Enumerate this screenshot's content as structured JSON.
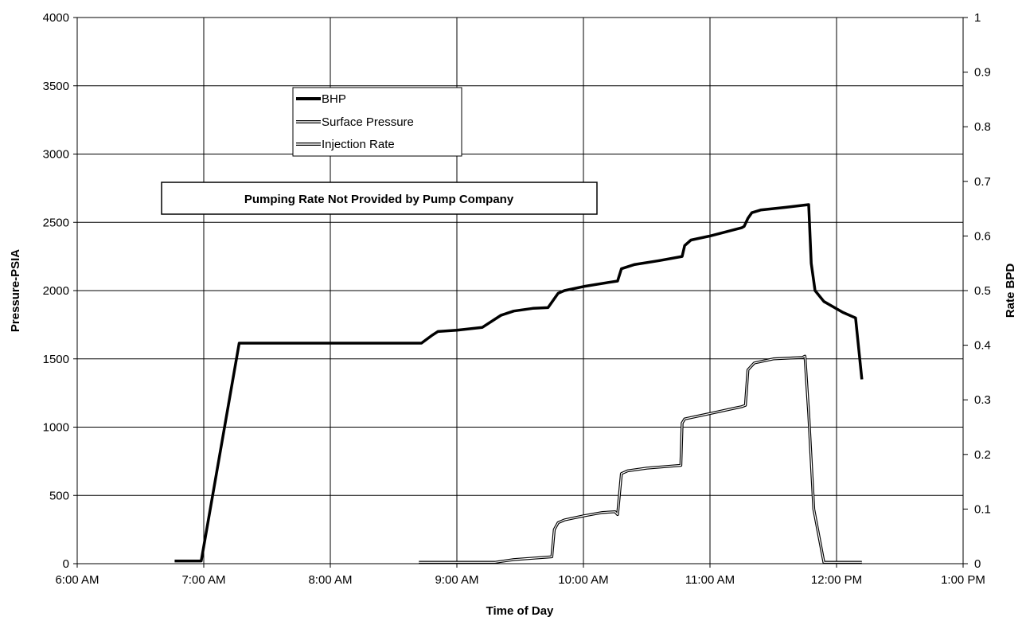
{
  "chart_data": {
    "type": "line",
    "xlabel": "Time of Day",
    "ylabel": "Pressure-PSIA",
    "y2label": "Rate BPD",
    "x_ticks": [
      "6:00 AM",
      "7:00 AM",
      "8:00 AM",
      "9:00 AM",
      "10:00 AM",
      "11:00 AM",
      "12:00 PM",
      "1:00 PM"
    ],
    "xlim_hours": [
      6,
      13
    ],
    "y_ticks": [
      0,
      500,
      1000,
      1500,
      2000,
      2500,
      3000,
      3500,
      4000
    ],
    "ylim": [
      0,
      4000
    ],
    "y2_ticks": [
      "0",
      "0.1",
      "0.2",
      "0.3",
      "0.4",
      "0.5",
      "0.6",
      "0.7",
      "0.8",
      "0.9",
      "1"
    ],
    "y2lim": [
      0,
      1
    ],
    "grid": true,
    "legend": {
      "position": "upper-left",
      "items": [
        "BHP",
        "Surface Pressure",
        "Injection Rate"
      ]
    },
    "annotation": "Pumping Rate Not Provided by Pump Company",
    "series": [
      {
        "name": "BHP",
        "x": [
          6.77,
          6.98,
          7.28,
          8.0,
          8.6,
          8.72,
          8.8,
          8.85,
          9.0,
          9.2,
          9.35,
          9.45,
          9.6,
          9.72,
          9.8,
          9.85,
          10.0,
          10.2,
          10.27,
          10.3,
          10.4,
          10.6,
          10.78,
          10.8,
          10.85,
          11.0,
          11.25,
          11.27,
          11.3,
          11.33,
          11.4,
          11.6,
          11.78,
          11.8,
          11.83,
          11.9,
          12.05,
          12.15,
          12.2
        ],
        "y": [
          20,
          20,
          1615,
          1615,
          1615,
          1615,
          1670,
          1700,
          1710,
          1730,
          1820,
          1850,
          1870,
          1875,
          1980,
          2000,
          2030,
          2060,
          2070,
          2160,
          2190,
          2220,
          2250,
          2330,
          2370,
          2400,
          2460,
          2470,
          2530,
          2570,
          2590,
          2610,
          2630,
          2200,
          2000,
          1920,
          1840,
          1800,
          1350
        ]
      },
      {
        "name": "Surface Pressure",
        "x": [
          8.7,
          9.0,
          9.3,
          9.45,
          9.75,
          9.77,
          9.8,
          9.85,
          10.0,
          10.15,
          10.25,
          10.27,
          10.3,
          10.35,
          10.5,
          10.77,
          10.78,
          10.8,
          10.85,
          11.0,
          11.2,
          11.25,
          11.28,
          11.3,
          11.35,
          11.5,
          11.73,
          11.75,
          11.78,
          11.82,
          11.9,
          12.2
        ],
        "y": [
          10,
          10,
          10,
          30,
          50,
          250,
          300,
          320,
          350,
          375,
          380,
          360,
          660,
          680,
          700,
          720,
          1030,
          1060,
          1070,
          1100,
          1140,
          1150,
          1160,
          1420,
          1470,
          1500,
          1510,
          1520,
          1100,
          400,
          10,
          10
        ]
      },
      {
        "name": "Injection Rate",
        "x": [],
        "y": []
      }
    ]
  }
}
